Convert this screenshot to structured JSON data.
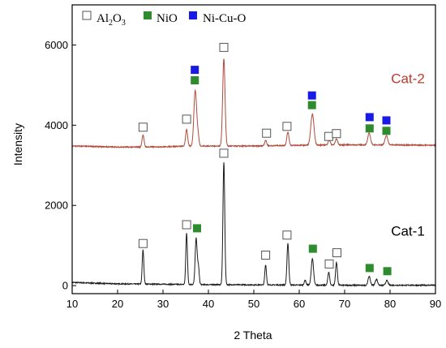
{
  "chart_data": {
    "type": "line",
    "xlabel": "2 Theta",
    "ylabel": "Intensity",
    "xlim": [
      10,
      90
    ],
    "ylim": [
      -200,
      7000
    ],
    "x_ticks": [
      "10",
      "20",
      "30",
      "40",
      "50",
      "60",
      "70",
      "80",
      "90"
    ],
    "y_ticks": [
      "0",
      "2000",
      "4000",
      "6000"
    ],
    "legend": {
      "placement": "top-left",
      "entries": [
        {
          "marker": "open-square",
          "text": "Al2O3",
          "base": "Al",
          "sub1": "2",
          "mid": "O",
          "sub2": "3"
        },
        {
          "marker": "green-square",
          "text": "NiO"
        },
        {
          "marker": "blue-square",
          "text": "Ni-Cu-O"
        }
      ]
    },
    "colors": {
      "al2o3": "#ffffff",
      "nio": "#2e8b2e",
      "nicuo": "#1a1ae6",
      "cat1": "#1a1a1a",
      "cat2": "#b04a3a",
      "cat2_label": "#c0392b"
    },
    "series": [
      {
        "name": "Cat-1",
        "label_at": [
          80,
          1250
        ],
        "baseline": [
          [
            10,
            80
          ],
          [
            15,
            60
          ],
          [
            20,
            45
          ],
          [
            25,
            40
          ],
          [
            30,
            35
          ],
          [
            40,
            25
          ],
          [
            50,
            20
          ],
          [
            60,
            15
          ],
          [
            70,
            10
          ],
          [
            80,
            10
          ],
          [
            90,
            10
          ]
        ],
        "peaks": [
          {
            "x": 25.6,
            "h": 850,
            "w": 0.18
          },
          {
            "x": 35.2,
            "h": 1280,
            "w": 0.18
          },
          {
            "x": 37.3,
            "h": 1150,
            "w": 0.22
          },
          {
            "x": 37.8,
            "h": 420,
            "w": 0.18
          },
          {
            "x": 43.4,
            "h": 3050,
            "w": 0.2
          },
          {
            "x": 52.6,
            "h": 500,
            "w": 0.18
          },
          {
            "x": 57.5,
            "h": 1040,
            "w": 0.2
          },
          {
            "x": 61.3,
            "h": 120,
            "w": 0.2
          },
          {
            "x": 62.9,
            "h": 660,
            "w": 0.25
          },
          {
            "x": 66.5,
            "h": 330,
            "w": 0.2
          },
          {
            "x": 68.2,
            "h": 570,
            "w": 0.2
          },
          {
            "x": 75.4,
            "h": 220,
            "w": 0.25
          },
          {
            "x": 77.0,
            "h": 150,
            "w": 0.25
          },
          {
            "x": 79.3,
            "h": 120,
            "w": 0.25
          }
        ],
        "markers": [
          {
            "x": 25.6,
            "y": 1050,
            "type": "al2o3"
          },
          {
            "x": 35.2,
            "y": 1520,
            "type": "al2o3"
          },
          {
            "x": 37.5,
            "y": 1430,
            "type": "nio"
          },
          {
            "x": 43.4,
            "y": 3300,
            "type": "al2o3"
          },
          {
            "x": 52.6,
            "y": 760,
            "type": "al2o3"
          },
          {
            "x": 57.3,
            "y": 1260,
            "type": "al2o3"
          },
          {
            "x": 63.0,
            "y": 920,
            "type": "nio"
          },
          {
            "x": 66.6,
            "y": 540,
            "type": "al2o3"
          },
          {
            "x": 68.3,
            "y": 820,
            "type": "al2o3"
          },
          {
            "x": 75.5,
            "y": 440,
            "type": "nio"
          },
          {
            "x": 79.4,
            "y": 360,
            "type": "nio"
          }
        ]
      },
      {
        "name": "Cat-2",
        "label_at": [
          80,
          5050
        ],
        "baseline": [
          [
            10,
            3480
          ],
          [
            15,
            3470
          ],
          [
            20,
            3455
          ],
          [
            25,
            3455
          ],
          [
            30,
            3460
          ],
          [
            35,
            3480
          ],
          [
            40,
            3480
          ],
          [
            50,
            3480
          ],
          [
            60,
            3500
          ],
          [
            70,
            3510
          ],
          [
            80,
            3510
          ],
          [
            90,
            3500
          ]
        ],
        "peaks": [
          {
            "x": 25.6,
            "h": 300,
            "w": 0.22
          },
          {
            "x": 35.2,
            "h": 420,
            "w": 0.22
          },
          {
            "x": 37.1,
            "h": 1390,
            "w": 0.3
          },
          {
            "x": 37.7,
            "h": 250,
            "w": 0.22
          },
          {
            "x": 43.4,
            "h": 2180,
            "w": 0.26
          },
          {
            "x": 52.6,
            "h": 140,
            "w": 0.22
          },
          {
            "x": 57.5,
            "h": 330,
            "w": 0.24
          },
          {
            "x": 62.9,
            "h": 770,
            "w": 0.35
          },
          {
            "x": 66.6,
            "h": 120,
            "w": 0.25
          },
          {
            "x": 68.2,
            "h": 150,
            "w": 0.25
          },
          {
            "x": 75.4,
            "h": 290,
            "w": 0.3
          },
          {
            "x": 79.2,
            "h": 230,
            "w": 0.3
          }
        ],
        "markers": [
          {
            "x": 25.6,
            "y": 3950,
            "type": "al2o3"
          },
          {
            "x": 35.2,
            "y": 4150,
            "type": "al2o3"
          },
          {
            "x": 37.0,
            "y": 5120,
            "type": "nio"
          },
          {
            "x": 37.0,
            "y": 5380,
            "type": "nicuo"
          },
          {
            "x": 43.4,
            "y": 5940,
            "type": "al2o3"
          },
          {
            "x": 52.8,
            "y": 3800,
            "type": "al2o3"
          },
          {
            "x": 57.3,
            "y": 3970,
            "type": "al2o3"
          },
          {
            "x": 62.8,
            "y": 4500,
            "type": "nio"
          },
          {
            "x": 62.8,
            "y": 4740,
            "type": "nicuo"
          },
          {
            "x": 66.5,
            "y": 3720,
            "type": "al2o3"
          },
          {
            "x": 68.2,
            "y": 3790,
            "type": "al2o3"
          },
          {
            "x": 75.5,
            "y": 3920,
            "type": "nio"
          },
          {
            "x": 75.5,
            "y": 4200,
            "type": "nicuo"
          },
          {
            "x": 79.2,
            "y": 3860,
            "type": "nio"
          },
          {
            "x": 79.2,
            "y": 4120,
            "type": "nicuo"
          }
        ]
      }
    ]
  }
}
